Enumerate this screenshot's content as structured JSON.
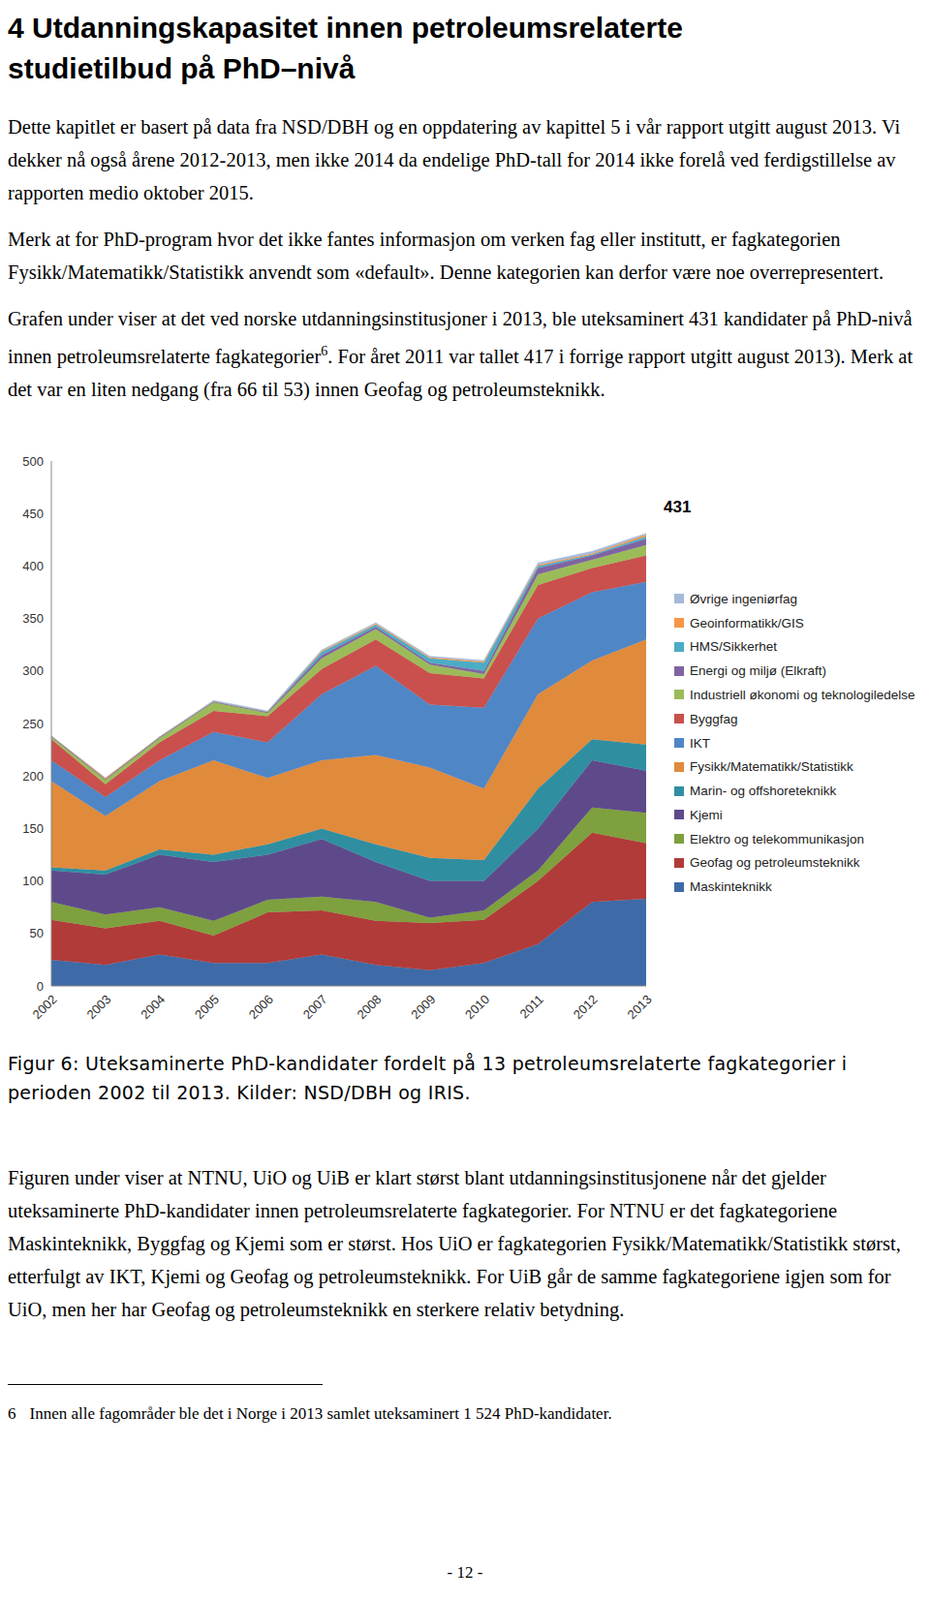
{
  "heading": "4 Utdanningskapasitet innen petroleumsrelaterte studietilbud på PhD–nivå",
  "paragraphs": [
    "Dette kapitlet er basert på data fra NSD/DBH og en oppdatering av kapittel 5 i vår rapport utgitt august 2013. Vi dekker nå også årene 2012-2013, men ikke 2014 da endelige PhD-tall for 2014 ikke forelå ved ferdigstillelse av rapporten medio oktober 2015.",
    "Merk at for PhD-program hvor det ikke fantes informasjon om verken fag eller institutt, er fagkategorien Fysikk/Matematikk/Statistikk anvendt som «default». Denne kategorien kan derfor være noe overrepresentert."
  ],
  "paragraph_with_footnote": {
    "before": "Grafen under viser at det ved norske utdanningsinstitusjoner i 2013, ble uteksaminert 431 kandidater på PhD-nivå innen petroleumsrelaterte fagkategorier",
    "mark": "6",
    "after": ". For året 2011 var tallet 417 i forrige rapport utgitt august 2013). Merk at det var en liten nedgang (fra 66 til 53) innen Geofag og petroleumsteknikk."
  },
  "chart_data": {
    "type": "area",
    "stacked": true,
    "grid": false,
    "legend": "right",
    "categories": [
      "2002",
      "2003",
      "2004",
      "2005",
      "2006",
      "2007",
      "2008",
      "2009",
      "2010",
      "2011",
      "2012",
      "2013"
    ],
    "ylim": [
      0,
      500
    ],
    "yticks": [
      0,
      50,
      100,
      150,
      200,
      250,
      300,
      350,
      400,
      450,
      500
    ],
    "annotations": [
      {
        "text": "431",
        "x": "2013",
        "y": 431
      }
    ],
    "series": [
      {
        "name": "Maskinteknikk",
        "color": "#3e6ba8",
        "values": [
          25,
          20,
          30,
          22,
          22,
          30,
          20,
          15,
          22,
          40,
          80,
          83
        ]
      },
      {
        "name": "Geofag og petroleumsteknikk",
        "color": "#b13b39",
        "values": [
          38,
          35,
          32,
          26,
          48,
          42,
          42,
          45,
          41,
          60,
          66,
          53
        ]
      },
      {
        "name": "Elektro og telekommunikasjon",
        "color": "#7ea03e",
        "values": [
          17,
          13,
          13,
          14,
          12,
          13,
          18,
          5,
          9,
          10,
          24,
          29
        ]
      },
      {
        "name": "Kjemi",
        "color": "#5e4a8b",
        "values": [
          30,
          38,
          50,
          56,
          43,
          55,
          38,
          35,
          28,
          40,
          45,
          40
        ]
      },
      {
        "name": "Marin- og offshoreteknikk",
        "color": "#2f8fa1",
        "values": [
          3,
          4,
          5,
          7,
          10,
          10,
          17,
          22,
          20,
          38,
          20,
          25
        ]
      },
      {
        "name": "Fysikk/Matematikk/Statistikk",
        "color": "#e08a3c",
        "values": [
          82,
          52,
          65,
          90,
          63,
          65,
          85,
          86,
          68,
          90,
          75,
          100
        ]
      },
      {
        "name": "IKT",
        "color": "#4f86c6",
        "values": [
          20,
          18,
          20,
          27,
          34,
          63,
          85,
          60,
          77,
          72,
          65,
          55
        ]
      },
      {
        "name": "Byggfag",
        "color": "#c9504d",
        "values": [
          20,
          12,
          17,
          20,
          25,
          24,
          25,
          30,
          28,
          32,
          23,
          25
        ]
      },
      {
        "name": "Industriell økonomi og teknologiledelse",
        "color": "#9bbb59",
        "values": [
          2,
          4,
          4,
          8,
          3,
          10,
          10,
          8,
          4,
          10,
          8,
          10
        ]
      },
      {
        "name": "Energi og miljø (Elkraft)",
        "color": "#8064a2",
        "values": [
          1,
          1,
          1,
          1,
          1,
          3,
          2,
          2,
          3,
          6,
          4,
          6
        ]
      },
      {
        "name": "HMS/Sikkerhet",
        "color": "#4bacc6",
        "values": [
          0,
          0,
          0,
          0,
          0,
          3,
          2,
          4,
          8,
          2,
          1,
          2
        ]
      },
      {
        "name": "Geoinformatikk/GIS",
        "color": "#f79646",
        "values": [
          0,
          1,
          0,
          0,
          0,
          1,
          1,
          1,
          1,
          1,
          1,
          2
        ]
      },
      {
        "name": "Øvrige ingeniørfag",
        "color": "#a5b9d9",
        "values": [
          0,
          0,
          0,
          1,
          1,
          1,
          1,
          1,
          1,
          2,
          2,
          1
        ]
      }
    ]
  },
  "caption": "Figur 6: Uteksaminerte PhD-kandidater fordelt på 13 petroleumsrelaterte fagkategorier i perioden 2002 til 2013. Kilder: NSD/DBH og IRIS.",
  "paragraph_after": "Figuren under viser at NTNU, UiO og UiB er klart størst blant utdanningsinstitusjonene når det gjelder uteksaminerte PhD-kandidater innen petroleumsrelaterte fagkategorier. For NTNU er det fagkategoriene Maskinteknikk, Byggfag og Kjemi som er størst. Hos UiO er fagkategorien Fysikk/Matematikk/Statistikk størst, etterfulgt av IKT, Kjemi og Geofag og petroleumsteknikk. For UiB går de samme fagkategoriene igjen som for UiO, men her har Geofag og petroleumsteknikk en sterkere relativ betydning.",
  "footnote": {
    "mark": "6",
    "text": "Innen alle fagområder ble det i Norge i 2013 samlet uteksaminert 1 524 PhD-kandidater."
  },
  "page_number": "- 12 -"
}
